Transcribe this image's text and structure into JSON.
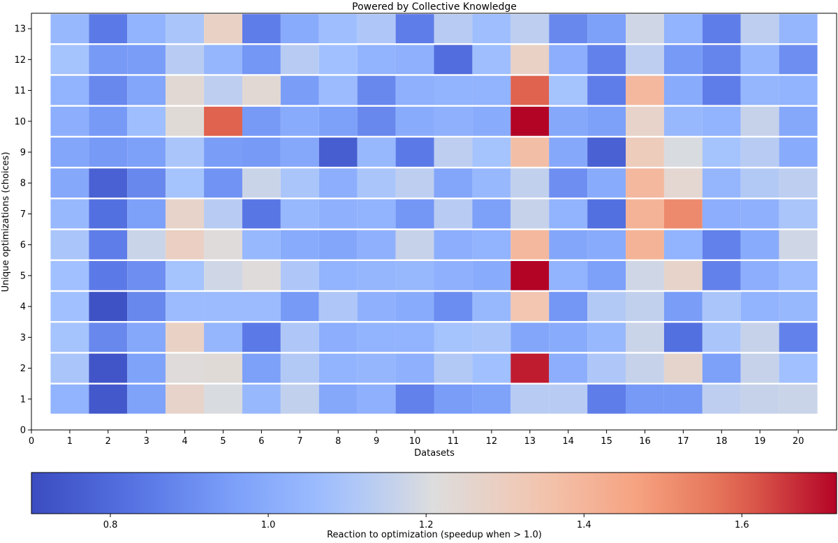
{
  "chart_data": {
    "type": "heatmap",
    "title": "Powered by Collective Knowledge",
    "xlabel": "Datasets",
    "ylabel": "Unique optimizations (choices)",
    "colorbar_label": "Reaction to optimization (speedup when > 1.0)",
    "colormap": "coolwarm",
    "vmin": 0.7,
    "vmax": 1.72,
    "xlim": [
      0,
      21
    ],
    "ylim": [
      0,
      13.5
    ],
    "x_ticks": [
      "0",
      "1",
      "2",
      "3",
      "4",
      "5",
      "6",
      "7",
      "8",
      "9",
      "10",
      "11",
      "12",
      "13",
      "14",
      "15",
      "16",
      "17",
      "18",
      "19",
      "20"
    ],
    "y_ticks": [
      "0",
      "1",
      "2",
      "3",
      "4",
      "5",
      "6",
      "7",
      "8",
      "9",
      "10",
      "11",
      "12",
      "13"
    ],
    "colorbar_ticks": [
      "0.8",
      "1.0",
      "1.2",
      "1.4",
      "1.6"
    ],
    "colorbar_tick_values": [
      0.8,
      1.0,
      1.2,
      1.4,
      1.6
    ],
    "grid": false,
    "rows": [
      {
        "y": 1,
        "values": [
          1.03,
          0.74,
          0.97,
          1.27,
          1.2,
          1.05,
          1.15,
          0.99,
          1.02,
          0.87,
          0.95,
          0.97,
          1.13,
          1.13,
          0.86,
          0.94,
          0.94,
          1.14,
          1.16,
          1.17
        ]
      },
      {
        "y": 2,
        "values": [
          1.1,
          0.73,
          0.97,
          1.22,
          1.23,
          0.96,
          1.12,
          1.03,
          1.04,
          1.02,
          1.12,
          1.08,
          1.69,
          1.01,
          1.11,
          1.16,
          1.26,
          0.96,
          1.16,
          1.08
        ]
      },
      {
        "y": 3,
        "values": [
          1.09,
          0.89,
          0.99,
          1.28,
          1.04,
          0.85,
          1.11,
          1.01,
          1.03,
          1.03,
          1.09,
          1.1,
          0.98,
          1.0,
          1.05,
          1.17,
          0.82,
          1.1,
          1.16,
          0.87
        ]
      },
      {
        "y": 4,
        "values": [
          1.08,
          0.72,
          0.89,
          1.06,
          1.06,
          1.06,
          0.94,
          1.11,
          1.02,
          1.0,
          0.9,
          1.05,
          1.34,
          0.93,
          1.12,
          1.15,
          0.95,
          1.1,
          1.03,
          1.05
        ]
      },
      {
        "y": 5,
        "values": [
          1.08,
          0.85,
          0.91,
          1.09,
          1.18,
          1.22,
          1.11,
          1.03,
          1.04,
          1.05,
          1.02,
          1.0,
          1.72,
          1.03,
          0.96,
          1.18,
          1.27,
          0.87,
          1.01,
          1.06
        ]
      },
      {
        "y": 6,
        "values": [
          1.1,
          0.86,
          1.17,
          1.29,
          1.22,
          1.05,
          1.0,
          0.98,
          1.02,
          1.16,
          1.01,
          1.03,
          1.39,
          0.98,
          1.0,
          1.41,
          1.03,
          0.87,
          1.0,
          1.18
        ]
      },
      {
        "y": 7,
        "values": [
          1.05,
          0.82,
          0.96,
          1.27,
          1.13,
          0.84,
          1.05,
          1.02,
          1.03,
          0.93,
          1.13,
          0.96,
          1.16,
          1.03,
          0.82,
          1.41,
          1.52,
          1.01,
          1.02,
          1.1
        ]
      },
      {
        "y": 8,
        "values": [
          0.99,
          0.77,
          0.89,
          1.09,
          0.92,
          1.17,
          1.1,
          1.01,
          1.1,
          1.14,
          0.98,
          1.05,
          1.15,
          0.91,
          1.0,
          1.39,
          1.25,
          1.04,
          1.12,
          1.14
        ]
      },
      {
        "y": 9,
        "values": [
          0.98,
          0.94,
          0.96,
          1.1,
          0.95,
          0.94,
          0.99,
          0.76,
          1.05,
          0.85,
          1.14,
          1.09,
          1.37,
          0.99,
          0.77,
          1.31,
          1.2,
          1.09,
          1.13,
          1.0
        ]
      },
      {
        "y": 10,
        "values": [
          1.01,
          0.94,
          1.07,
          1.23,
          1.6,
          0.94,
          1.0,
          0.96,
          0.89,
          1.0,
          1.02,
          1.0,
          1.72,
          0.99,
          0.96,
          1.27,
          1.05,
          1.03,
          1.16,
          0.99
        ]
      },
      {
        "y": 11,
        "values": [
          1.03,
          0.89,
          0.98,
          1.24,
          1.14,
          1.24,
          0.95,
          1.06,
          0.89,
          1.02,
          1.03,
          1.03,
          1.6,
          1.09,
          0.86,
          1.39,
          1.0,
          0.86,
          1.04,
          1.03
        ]
      },
      {
        "y": 12,
        "values": [
          1.09,
          0.94,
          0.95,
          1.13,
          1.04,
          0.93,
          1.13,
          1.08,
          1.03,
          1.02,
          0.81,
          1.07,
          1.28,
          1.01,
          0.87,
          1.14,
          0.94,
          0.88,
          1.04,
          0.91
        ]
      },
      {
        "y": 13,
        "values": [
          1.05,
          0.85,
          1.03,
          1.1,
          1.28,
          0.86,
          1.0,
          1.07,
          1.11,
          0.86,
          1.13,
          1.07,
          1.14,
          0.89,
          0.96,
          1.18,
          1.03,
          0.86,
          1.14,
          1.04
        ]
      }
    ]
  }
}
